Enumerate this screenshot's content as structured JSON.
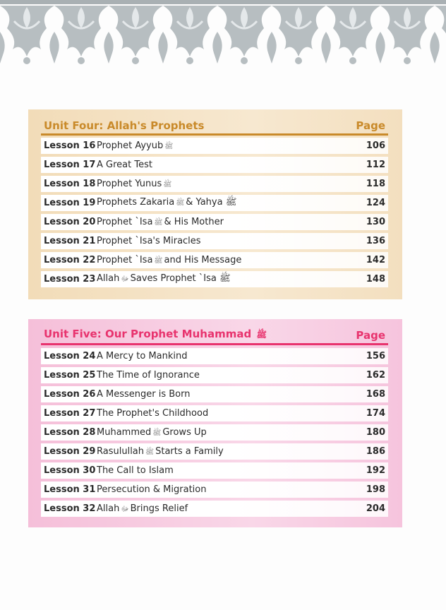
{
  "units": [
    {
      "title": "Unit Four: Allah's Prophets",
      "page_label": "Page",
      "accent": "#c98a2a",
      "lessons": [
        {
          "num": "Lesson 16",
          "parts": [
            "Prophet Ayyub",
            "ﷺ",
            ""
          ],
          "page": "106"
        },
        {
          "num": "Lesson 17",
          "parts": [
            "A Great Test",
            "",
            ""
          ],
          "page": "112"
        },
        {
          "num": "Lesson 18",
          "parts": [
            "Prophet Yunus",
            "ﷺ",
            ""
          ],
          "page": "118"
        },
        {
          "num": "Lesson 19",
          "parts": [
            "Prophets Zakaria",
            "ﷺ",
            "& Yahya ﷺ"
          ],
          "page": "124"
        },
        {
          "num": "Lesson 20",
          "parts": [
            "Prophet `Isa",
            "ﷺ",
            "& His Mother"
          ],
          "page": "130"
        },
        {
          "num": "Lesson 21",
          "parts": [
            "Prophet `Isa's Miracles",
            "",
            ""
          ],
          "page": "136"
        },
        {
          "num": "Lesson 22",
          "parts": [
            "Prophet `Isa",
            "ﷺ",
            "and His Message"
          ],
          "page": "142"
        },
        {
          "num": "Lesson 23",
          "parts": [
            "Allah",
            "ﷻ",
            "Saves Prophet `Isa ﷺ"
          ],
          "page": "148"
        }
      ]
    },
    {
      "title": "Unit Five: Our Prophet Muhammad",
      "title_honorific": "ﷺ",
      "page_label": "Page",
      "accent": "#e8336e",
      "lessons": [
        {
          "num": "Lesson 24",
          "parts": [
            "A Mercy to Mankind",
            "",
            ""
          ],
          "page": "156"
        },
        {
          "num": "Lesson 25",
          "parts": [
            "The Time of Ignorance",
            "",
            ""
          ],
          "page": "162"
        },
        {
          "num": "Lesson 26",
          "parts": [
            "A Messenger is Born",
            "",
            ""
          ],
          "page": "168"
        },
        {
          "num": "Lesson 27",
          "parts": [
            "The Prophet's Childhood",
            "",
            ""
          ],
          "page": "174"
        },
        {
          "num": "Lesson 28",
          "parts": [
            "Muhammed",
            "ﷺ",
            "Grows Up"
          ],
          "page": "180"
        },
        {
          "num": "Lesson 29",
          "parts": [
            "Rasulullah",
            "ﷺ",
            "Starts a Family"
          ],
          "page": "186"
        },
        {
          "num": "Lesson 30",
          "parts": [
            "The Call to Islam",
            "",
            ""
          ],
          "page": "192"
        },
        {
          "num": "Lesson 31",
          "parts": [
            "Persecution & Migration",
            "",
            ""
          ],
          "page": "198"
        },
        {
          "num": "Lesson 32",
          "parts": [
            "Allah",
            "ﷻ",
            "Brings Relief"
          ],
          "page": "204"
        }
      ]
    }
  ]
}
